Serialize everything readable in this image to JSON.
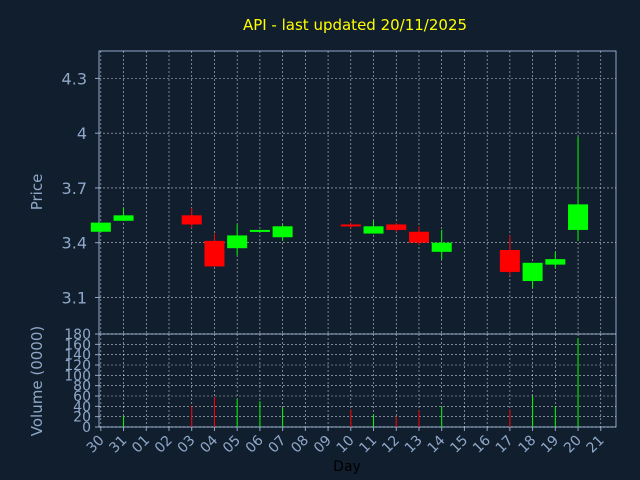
{
  "chart_data": [
    {
      "type": "candlestick",
      "title": "API - last updated 20/11/2025",
      "ylabel": "Price",
      "ylim": [
        2.9,
        4.45
      ],
      "y_ticks": [
        "3.1",
        "3.4",
        "3.7",
        "4",
        "4.3"
      ],
      "grid": true,
      "colors": {
        "up": "#00ff00",
        "down": "#ff0000",
        "grid": "#ffffff",
        "axis": "#8fa8c8",
        "title": "#ffff00",
        "background": "#111e2e"
      },
      "candles": [
        {
          "day": "30",
          "open": 3.46,
          "high": 3.51,
          "low": 3.46,
          "close": 3.51
        },
        {
          "day": "31",
          "open": 3.52,
          "high": 3.59,
          "low": 3.52,
          "close": 3.55
        },
        {
          "day": "03",
          "open": 3.55,
          "high": 3.59,
          "low": 3.48,
          "close": 3.5
        },
        {
          "day": "04",
          "open": 3.41,
          "high": 3.45,
          "low": 3.27,
          "close": 3.27
        },
        {
          "day": "05",
          "open": 3.37,
          "high": 3.5,
          "low": 3.33,
          "close": 3.44
        },
        {
          "day": "06",
          "open": 3.46,
          "high": 3.47,
          "low": 3.46,
          "close": 3.47
        },
        {
          "day": "07",
          "open": 3.43,
          "high": 3.5,
          "low": 3.41,
          "close": 3.49
        },
        {
          "day": "10",
          "open": 3.5,
          "high": 3.51,
          "low": 3.48,
          "close": 3.49
        },
        {
          "day": "11",
          "open": 3.45,
          "high": 3.52,
          "low": 3.45,
          "close": 3.49
        },
        {
          "day": "12",
          "open": 3.5,
          "high": 3.51,
          "low": 3.46,
          "close": 3.47
        },
        {
          "day": "13",
          "open": 3.46,
          "high": 3.49,
          "low": 3.39,
          "close": 3.4
        },
        {
          "day": "14",
          "open": 3.35,
          "high": 3.47,
          "low": 3.31,
          "close": 3.4
        },
        {
          "day": "17",
          "open": 3.36,
          "high": 3.44,
          "low": 3.22,
          "close": 3.24
        },
        {
          "day": "18",
          "open": 3.19,
          "high": 3.29,
          "low": 3.15,
          "close": 3.29
        },
        {
          "day": "19",
          "open": 3.28,
          "high": 3.35,
          "low": 3.26,
          "close": 3.31
        },
        {
          "day": "20",
          "open": 3.47,
          "high": 3.98,
          "low": 3.41,
          "close": 3.61
        }
      ]
    },
    {
      "type": "bar",
      "ylabel": "Volume (0000)",
      "xlabel": "Day",
      "ylim": [
        0,
        180
      ],
      "y_ticks": [
        "0",
        "20",
        "40",
        "60",
        "80",
        "100",
        "120",
        "140",
        "160",
        "180"
      ],
      "x_ticks": [
        "30",
        "31",
        "01",
        "02",
        "03",
        "04",
        "05",
        "06",
        "07",
        "08",
        "09",
        "10",
        "11",
        "12",
        "13",
        "14",
        "15",
        "16",
        "17",
        "18",
        "19",
        "20",
        "21"
      ],
      "grid": true,
      "series": [
        {
          "values": [
            {
              "day": "31",
              "value": 22,
              "direction": "up"
            },
            {
              "day": "03",
              "value": 40,
              "direction": "down"
            },
            {
              "day": "04",
              "value": 58,
              "direction": "down"
            },
            {
              "day": "05",
              "value": 54,
              "direction": "up"
            },
            {
              "day": "06",
              "value": 50,
              "direction": "up"
            },
            {
              "day": "07",
              "value": 38,
              "direction": "up"
            },
            {
              "day": "10",
              "value": 34,
              "direction": "down"
            },
            {
              "day": "11",
              "value": 24,
              "direction": "up"
            },
            {
              "day": "12",
              "value": 20,
              "direction": "down"
            },
            {
              "day": "13",
              "value": 32,
              "direction": "down"
            },
            {
              "day": "14",
              "value": 40,
              "direction": "up"
            },
            {
              "day": "17",
              "value": 34,
              "direction": "down"
            },
            {
              "day": "18",
              "value": 60,
              "direction": "up"
            },
            {
              "day": "19",
              "value": 40,
              "direction": "up"
            },
            {
              "day": "20",
              "value": 172,
              "direction": "up"
            }
          ]
        }
      ]
    }
  ]
}
